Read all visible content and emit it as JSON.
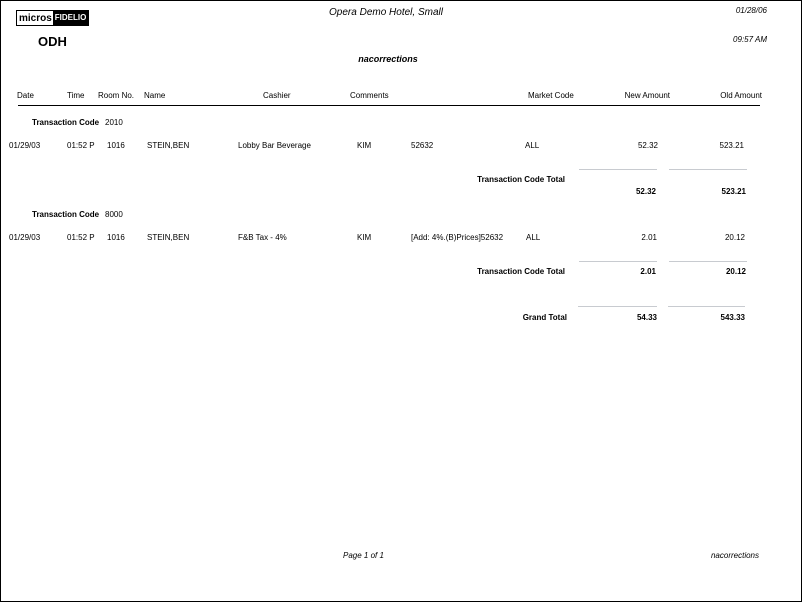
{
  "header": {
    "logo_text": "micros-FIDELIO",
    "property_code": "ODH",
    "hotel_name": "Opera Demo Hotel, Small",
    "report_name": "nacorrections",
    "date": "01/28/06",
    "time": "09:57 AM"
  },
  "columns": [
    "Date",
    "Time",
    "Room No.",
    "Name",
    "Cashier",
    "Comments",
    "Market Code",
    "New Amount",
    "Old Amount"
  ],
  "groups": [
    {
      "label": "Transaction Code",
      "code": "2010",
      "row": {
        "date": "01/29/03",
        "time": "01:52 P",
        "room": "1016",
        "name": "STEIN,BEN",
        "description": "Lobby Bar Beverage",
        "cashier": "KIM",
        "comments": "52632",
        "market": "ALL",
        "new_amount": "52.32",
        "old_amount": "523.21"
      },
      "total_label": "Transaction Code Total",
      "total_new": "52.32",
      "total_old": "523.21"
    },
    {
      "label": "Transaction Code",
      "code": "8000",
      "row": {
        "date": "01/29/03",
        "time": "01:52 P",
        "room": "1016",
        "name": "STEIN,BEN",
        "description": "F&B Tax - 4%",
        "cashier": "KIM",
        "comments": "[Add: 4%.(B)Prices]52632",
        "market": "ALL",
        "new_amount": "2.01",
        "old_amount": "20.12"
      },
      "total_label": "Transaction Code Total",
      "total_new": "2.01",
      "total_old": "20.12"
    }
  ],
  "grand_total": {
    "label": "Grand Total",
    "new_amount": "54.33",
    "old_amount": "543.33"
  },
  "footer": {
    "page": "Page 1  of 1",
    "report_name": "nacorrections"
  }
}
